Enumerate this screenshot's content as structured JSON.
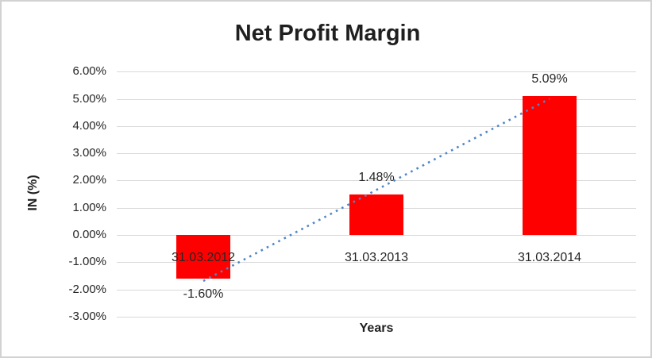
{
  "window": {
    "background": "#ffffff",
    "frame_border_color": "#d2d2d2"
  },
  "chart_data": {
    "type": "bar",
    "title": "Net Profit Margin",
    "xlabel": "Years",
    "ylabel": "IN (%)",
    "categories": [
      "31.03.2012",
      "31.03.2013",
      "31.03.2014"
    ],
    "values": [
      -1.6,
      1.48,
      5.09
    ],
    "data_labels": [
      "-1.60%",
      "1.48%",
      "5.09%"
    ],
    "series_name": "Net Profit Margin",
    "bar_color": "#ff0000",
    "ylim": [
      -3,
      6
    ],
    "ytick_values": [
      6,
      5,
      4,
      3,
      2,
      1,
      0,
      -1,
      -2,
      -3
    ],
    "ytick_labels": [
      "6.00%",
      "5.00%",
      "4.00%",
      "3.00%",
      "2.00%",
      "1.00%",
      "0.00%",
      "-1.00%",
      "-2.00%",
      "-3.00%"
    ],
    "grid": true,
    "gridline_color": "#d9d9d9",
    "legend": "none",
    "trendline": {
      "type": "linear",
      "style": "dotted",
      "color": "#4f86c6",
      "start_value": -1.69,
      "end_value": 5.0
    }
  }
}
